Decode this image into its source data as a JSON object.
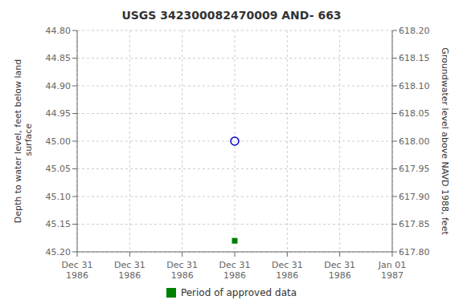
{
  "chart_data": {
    "type": "scatter",
    "title": "USGS 342300082470009 AND- 663",
    "ylabel": "Depth to water level, feet below land\n surface",
    "y2label": "Groundwater level above NAVD 1988, feet",
    "categories": [
      "Dec 31\n1986",
      "Dec 31\n1986",
      "Dec 31\n1986",
      "Dec 31\n1986",
      "Dec 31\n1986",
      "Dec 31\n1986",
      "Jan 01\n1987"
    ],
    "series": [
      {
        "color": "#0000cc",
        "marker": "circle",
        "values": [
          null,
          null,
          null,
          45.0,
          null,
          null,
          null
        ]
      },
      {
        "name": "Period of approved data",
        "color": "#008000",
        "marker": "square",
        "values": [
          null,
          null,
          null,
          45.18,
          null,
          null,
          null
        ]
      }
    ],
    "ylim": [
      45.2,
      44.8
    ],
    "yticks": [
      {
        "value": 44.8,
        "label": "44.80"
      },
      {
        "value": 44.85,
        "label": "44.85"
      },
      {
        "value": 44.9,
        "label": "44.90"
      },
      {
        "value": 44.95,
        "label": "44.95"
      },
      {
        "value": 45.0,
        "label": "45.00"
      },
      {
        "value": 45.05,
        "label": "45.05"
      },
      {
        "value": 45.1,
        "label": "45.10"
      },
      {
        "value": 45.15,
        "label": "45.15"
      },
      {
        "value": 45.2,
        "label": "45.20"
      }
    ],
    "y2lim": [
      617.8,
      618.2
    ],
    "y2ticks": [
      {
        "value": 618.2,
        "label": "618.20"
      },
      {
        "value": 618.15,
        "label": "618.15"
      },
      {
        "value": 618.1,
        "label": "618.10"
      },
      {
        "value": 618.05,
        "label": "618.05"
      },
      {
        "value": 618.0,
        "label": "618.00"
      },
      {
        "value": 617.95,
        "label": "617.95"
      },
      {
        "value": 617.9,
        "label": "617.90"
      },
      {
        "value": 617.85,
        "label": "617.85"
      },
      {
        "value": 617.8,
        "label": "617.80"
      }
    ],
    "grid": true,
    "legend": "bottom"
  }
}
